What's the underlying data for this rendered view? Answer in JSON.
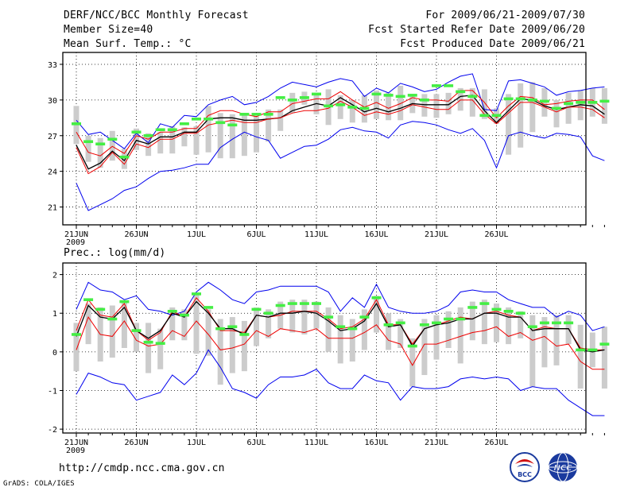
{
  "header": {
    "title": "DERF/NCC/BCC Monthly Forecast",
    "member_size": "Member Size=40",
    "variable": "Mean Surf. Temp.: °C",
    "period": "For 2009/06/21-2009/07/30",
    "started": "Fcst Started Refer Date 2009/06/20",
    "produced": "Fcst Produced Date 2009/06/21"
  },
  "footer": {
    "url": "http://cmdp.ncc.cma.gov.cn",
    "credit": "GrADS: COLA/IGES",
    "logo_bcc": "BCC",
    "logo_ncc": "NCC"
  },
  "colors": {
    "upper": "#0000ee",
    "lower": "#0000ee",
    "mean": "#ee0000",
    "median": "#000000",
    "obs": "#44ee44",
    "box": "#cccccc"
  },
  "chart_data": [
    {
      "type": "line",
      "title": "Mean Surf. Temp.: °C",
      "ylim": [
        19.5,
        34
      ],
      "yticks": [
        21,
        24,
        27,
        30,
        33
      ],
      "xticks": [
        {
          "day": 0,
          "label": "21JUN"
        },
        {
          "day": 5,
          "label": "26JUN"
        },
        {
          "day": 10,
          "label": "1JUL"
        },
        {
          "day": 15,
          "label": "6JUL"
        },
        {
          "day": 20,
          "label": "11JUL"
        },
        {
          "day": 25,
          "label": "16JUL"
        },
        {
          "day": 30,
          "label": "21JUL"
        },
        {
          "day": 35,
          "label": "26JUL"
        }
      ],
      "year_label": "2009",
      "series": [
        {
          "name": "max",
          "values": [
            28.3,
            27.1,
            27.3,
            26.6,
            25.9,
            27.2,
            26.4,
            28.0,
            27.7,
            28.7,
            28.6,
            29.6,
            30.0,
            30.3,
            29.6,
            29.8,
            30.3,
            31.0,
            31.5,
            31.3,
            31.1,
            31.5,
            31.8,
            31.6,
            30.3,
            31.0,
            30.6,
            31.4,
            31.1,
            30.7,
            30.9,
            31.5,
            32.0,
            32.2,
            29.2,
            29.1,
            31.6,
            31.7,
            31.4,
            31.1,
            30.4,
            30.7,
            30.8,
            31.0,
            31.1
          ]
        },
        {
          "name": "min",
          "values": [
            23.0,
            20.7,
            21.2,
            21.7,
            22.4,
            22.7,
            23.4,
            24.0,
            24.1,
            24.3,
            24.6,
            24.6,
            26.0,
            26.7,
            27.3,
            26.9,
            26.6,
            25.1,
            25.6,
            26.1,
            26.2,
            26.7,
            27.5,
            27.7,
            27.4,
            27.3,
            26.8,
            27.9,
            28.2,
            28.1,
            27.9,
            27.5,
            27.2,
            27.6,
            26.6,
            24.3,
            27.0,
            27.3,
            27.0,
            26.8,
            27.2,
            27.1,
            26.9,
            25.3,
            24.9
          ]
        },
        {
          "name": "mean",
          "values": [
            27.3,
            25.6,
            25.3,
            26.1,
            25.5,
            27.0,
            26.7,
            27.3,
            27.3,
            27.6,
            27.6,
            28.7,
            29.1,
            29.1,
            28.8,
            28.6,
            29.0,
            29.0,
            29.7,
            29.9,
            30.1,
            30.1,
            30.7,
            30.0,
            29.4,
            29.8,
            29.3,
            29.7,
            30.2,
            30.0,
            30.0,
            29.9,
            30.8,
            30.8,
            29.8,
            28.5,
            29.5,
            30.3,
            30.2,
            29.6,
            29.7,
            29.9,
            30.0,
            30.0,
            29.2
          ]
        },
        {
          "name": "median",
          "values": [
            26.2,
            24.2,
            24.7,
            25.7,
            24.9,
            26.6,
            26.3,
            26.9,
            26.9,
            27.3,
            27.3,
            28.4,
            28.5,
            28.5,
            28.3,
            28.3,
            28.4,
            28.5,
            29.1,
            29.4,
            29.7,
            29.5,
            30.2,
            29.6,
            29.0,
            29.3,
            29.0,
            29.3,
            29.7,
            29.6,
            29.6,
            29.6,
            30.3,
            30.4,
            29.1,
            28.1,
            29.1,
            30.1,
            30.0,
            29.5,
            29.2,
            29.4,
            29.6,
            29.5,
            28.8
          ]
        },
        {
          "name": "lower",
          "values": [
            26.0,
            23.8,
            24.4,
            25.6,
            24.6,
            26.3,
            26.0,
            26.7,
            26.7,
            27.2,
            27.2,
            27.9,
            28.1,
            28.3,
            28.1,
            28.1,
            28.4,
            28.5,
            28.9,
            29.1,
            29.1,
            29.3,
            29.9,
            29.4,
            28.7,
            29.0,
            28.8,
            29.1,
            29.6,
            29.4,
            29.2,
            29.2,
            30.0,
            30.0,
            28.8,
            28.0,
            28.9,
            29.8,
            29.8,
            29.4,
            29.0,
            29.4,
            29.4,
            29.2,
            28.5
          ]
        }
      ],
      "boxes": [
        [
          26.3,
          29.5
        ],
        [
          24.8,
          27.0
        ],
        [
          24.3,
          26.8
        ],
        [
          24.9,
          27.4
        ],
        [
          24.2,
          25.9
        ],
        [
          25.8,
          27.6
        ],
        [
          25.3,
          27.2
        ],
        [
          25.5,
          27.3
        ],
        [
          25.5,
          27.8
        ],
        [
          26.1,
          27.7
        ],
        [
          25.4,
          27.8
        ],
        [
          25.6,
          29.5
        ],
        [
          25.1,
          28.9
        ],
        [
          25.1,
          28.8
        ],
        [
          25.3,
          28.8
        ],
        [
          25.6,
          28.6
        ],
        [
          26.5,
          29.2
        ],
        [
          27.4,
          29.2
        ],
        [
          28.9,
          30.6
        ],
        [
          29.6,
          30.7
        ],
        [
          28.8,
          30.6
        ],
        [
          27.9,
          30.9
        ],
        [
          28.4,
          30.4
        ],
        [
          28.1,
          30.0
        ],
        [
          28.1,
          30.4
        ],
        [
          28.4,
          30.8
        ],
        [
          28.3,
          30.6
        ],
        [
          28.3,
          31.2
        ],
        [
          28.9,
          30.5
        ],
        [
          28.6,
          30.5
        ],
        [
          28.5,
          30.5
        ],
        [
          28.8,
          30.6
        ],
        [
          29.1,
          31.0
        ],
        [
          28.6,
          31.0
        ],
        [
          28.4,
          30.9
        ],
        [
          28.0,
          29.3
        ],
        [
          25.4,
          30.5
        ],
        [
          26.0,
          31.4
        ],
        [
          27.3,
          31.5
        ],
        [
          28.6,
          31.0
        ],
        [
          27.7,
          30.0
        ],
        [
          28.0,
          30.6
        ],
        [
          28.3,
          30.8
        ],
        [
          28.6,
          31.0
        ],
        [
          28.0,
          31.0
        ]
      ],
      "observed": [
        28.0,
        26.5,
        26.3,
        26.7,
        25.2,
        27.3,
        27.0,
        27.5,
        27.5,
        28.0,
        28.4,
        28.4,
        28.1,
        27.9,
        28.8,
        28.8,
        28.8,
        30.2,
        30.0,
        30.2,
        30.5,
        29.5,
        29.6,
        29.4,
        29.3,
        30.5,
        30.4,
        30.3,
        30.4,
        30.0,
        31.2,
        31.2,
        30.7,
        30.3,
        28.7,
        28.7,
        30.1,
        30.1,
        30.0,
        29.9,
        29.3,
        29.7,
        29.8,
        29.8,
        29.9
      ]
    },
    {
      "type": "line",
      "title": "Prec.: log(mm/d)",
      "ylim": [
        -2.1,
        2.3
      ],
      "yticks": [
        -2,
        -1,
        0,
        1,
        2
      ],
      "xticks": [
        {
          "day": 0,
          "label": "21JUN"
        },
        {
          "day": 5,
          "label": "26JUN"
        },
        {
          "day": 10,
          "label": "1JUL"
        },
        {
          "day": 15,
          "label": "6JUL"
        },
        {
          "day": 20,
          "label": "11JUL"
        },
        {
          "day": 25,
          "label": "16JUL"
        },
        {
          "day": 30,
          "label": "21JUL"
        },
        {
          "day": 35,
          "label": "26JUL"
        }
      ],
      "year_label": "2009",
      "series": [
        {
          "name": "max",
          "values": [
            1.1,
            1.8,
            1.6,
            1.55,
            1.35,
            1.45,
            1.1,
            1.05,
            0.95,
            1.05,
            1.55,
            1.8,
            1.6,
            1.35,
            1.25,
            1.55,
            1.6,
            1.7,
            1.7,
            1.7,
            1.7,
            1.55,
            1.05,
            1.4,
            1.15,
            1.75,
            1.15,
            1.05,
            1.0,
            1.0,
            1.05,
            1.2,
            1.55,
            1.6,
            1.55,
            1.55,
            1.35,
            1.25,
            1.15,
            1.15,
            0.9,
            1.05,
            0.95,
            0.55,
            0.65
          ]
        },
        {
          "name": "min",
          "values": [
            -1.1,
            -0.55,
            -0.65,
            -0.8,
            -0.85,
            -1.25,
            -1.15,
            -1.05,
            -0.6,
            -0.85,
            -0.55,
            0.05,
            -0.4,
            -0.95,
            -1.05,
            -1.2,
            -0.85,
            -0.65,
            -0.65,
            -0.6,
            -0.45,
            -0.8,
            -0.95,
            -0.95,
            -0.6,
            -0.75,
            -0.8,
            -1.25,
            -0.9,
            -0.95,
            -0.95,
            -0.9,
            -0.7,
            -0.65,
            -0.7,
            -0.65,
            -0.7,
            -1.0,
            -0.9,
            -0.95,
            -0.95,
            -1.25,
            -1.45,
            -1.65,
            -1.65
          ]
        },
        {
          "name": "mean",
          "values": [
            0.55,
            1.35,
            0.95,
            0.9,
            1.25,
            0.55,
            0.3,
            0.5,
            1.05,
            0.9,
            1.4,
            1.05,
            0.55,
            0.55,
            0.5,
            0.95,
            0.9,
            0.95,
            1.05,
            1.05,
            1.05,
            0.85,
            0.6,
            0.65,
            0.85,
            1.35,
            0.7,
            0.7,
            0.2,
            0.6,
            0.7,
            0.8,
            0.9,
            0.85,
            1.0,
            1.05,
            0.95,
            0.9,
            0.55,
            0.65,
            0.6,
            0.6,
            0.1,
            0.05,
            0.05
          ]
        },
        {
          "name": "median",
          "values": [
            0.4,
            1.2,
            0.9,
            0.85,
            1.15,
            0.55,
            0.35,
            0.55,
            1.0,
            0.9,
            1.3,
            1.0,
            0.6,
            0.6,
            0.45,
            0.95,
            0.9,
            1.0,
            1.0,
            1.05,
            1.0,
            0.8,
            0.55,
            0.6,
            0.8,
            1.25,
            0.65,
            0.7,
            0.15,
            0.6,
            0.7,
            0.75,
            0.85,
            0.85,
            1.0,
            1.0,
            0.9,
            0.9,
            0.55,
            0.6,
            0.6,
            0.6,
            0.05,
            0.0,
            0.05
          ]
        },
        {
          "name": "lower",
          "values": [
            0.05,
            0.9,
            0.45,
            0.4,
            0.8,
            0.3,
            0.15,
            0.2,
            0.55,
            0.4,
            0.8,
            0.45,
            0.05,
            0.1,
            0.2,
            0.55,
            0.4,
            0.6,
            0.55,
            0.5,
            0.6,
            0.35,
            0.35,
            0.35,
            0.5,
            0.7,
            0.3,
            0.2,
            -0.35,
            0.2,
            0.2,
            0.3,
            0.4,
            0.5,
            0.55,
            0.65,
            0.4,
            0.5,
            0.3,
            0.4,
            0.15,
            0.2,
            -0.25,
            -0.45,
            -0.45
          ]
        }
      ],
      "boxes": [
        [
          -0.5,
          0.75
        ],
        [
          0.2,
          1.25
        ],
        [
          -0.25,
          1.15
        ],
        [
          -0.15,
          1.2
        ],
        [
          0.1,
          1.3
        ],
        [
          0.0,
          0.75
        ],
        [
          -0.55,
          0.75
        ],
        [
          -0.45,
          0.6
        ],
        [
          0.3,
          1.15
        ],
        [
          0.3,
          1.1
        ],
        [
          -0.05,
          1.5
        ],
        [
          -0.1,
          1.1
        ],
        [
          -0.85,
          0.85
        ],
        [
          -0.55,
          0.9
        ],
        [
          -0.5,
          0.8
        ],
        [
          0.15,
          1.15
        ],
        [
          0.35,
          1.1
        ],
        [
          0.6,
          1.3
        ],
        [
          0.5,
          1.35
        ],
        [
          0.45,
          1.35
        ],
        [
          0.6,
          1.3
        ],
        [
          0.0,
          1.15
        ],
        [
          -0.3,
          0.95
        ],
        [
          -0.25,
          0.85
        ],
        [
          0.05,
          1.1
        ],
        [
          0.5,
          1.45
        ],
        [
          0.05,
          1.0
        ],
        [
          0.1,
          0.85
        ],
        [
          -0.9,
          0.35
        ],
        [
          -0.6,
          0.85
        ],
        [
          -0.2,
          0.95
        ],
        [
          0.1,
          1.05
        ],
        [
          -0.3,
          1.15
        ],
        [
          0.3,
          1.3
        ],
        [
          0.2,
          1.35
        ],
        [
          0.25,
          1.25
        ],
        [
          0.2,
          1.15
        ],
        [
          0.35,
          1.05
        ],
        [
          -0.9,
          0.95
        ],
        [
          -0.4,
          0.9
        ],
        [
          -0.35,
          0.95
        ],
        [
          0.2,
          0.95
        ],
        [
          -0.95,
          0.7
        ],
        [
          -0.4,
          0.5
        ],
        [
          -0.95,
          0.65
        ]
      ],
      "observed": [
        0.45,
        1.35,
        1.1,
        0.85,
        1.3,
        0.55,
        0.25,
        0.22,
        1.05,
        0.95,
        1.5,
        1.15,
        0.6,
        0.65,
        0.45,
        1.1,
        1.0,
        1.2,
        1.25,
        1.25,
        1.25,
        0.9,
        0.65,
        0.6,
        0.9,
        1.4,
        0.7,
        0.75,
        0.15,
        0.7,
        0.75,
        0.85,
        0.85,
        1.15,
        1.25,
        1.1,
        1.05,
        1.0,
        0.65,
        0.75,
        0.75,
        0.75,
        0.05,
        0.05,
        0.2
      ]
    }
  ]
}
